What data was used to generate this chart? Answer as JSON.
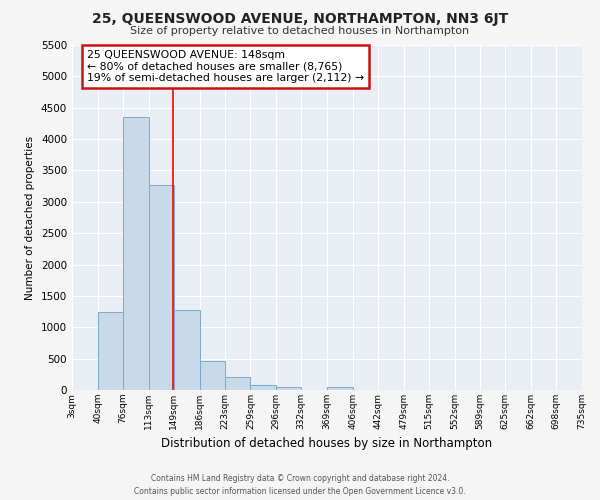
{
  "title": "25, QUEENSWOOD AVENUE, NORTHAMPTON, NN3 6JT",
  "subtitle": "Size of property relative to detached houses in Northampton",
  "xlabel": "Distribution of detached houses by size in Northampton",
  "ylabel": "Number of detached properties",
  "bar_color": "#c8daea",
  "bar_edge_color": "#7aaac8",
  "plot_bg_color": "#e8eef4",
  "fig_bg_color": "#f5f5f5",
  "grid_color": "#ffffff",
  "red_line_x": 148,
  "bin_edges": [
    3,
    40,
    76,
    113,
    149,
    186,
    223,
    259,
    296,
    332,
    369,
    406,
    442,
    479,
    515,
    552,
    589,
    625,
    662,
    698,
    735
  ],
  "bin_counts": [
    0,
    1250,
    4350,
    3270,
    1280,
    470,
    210,
    75,
    55,
    0,
    45,
    0,
    0,
    0,
    0,
    0,
    0,
    0,
    0,
    0
  ],
  "ylim": [
    0,
    5500
  ],
  "yticks": [
    0,
    500,
    1000,
    1500,
    2000,
    2500,
    3000,
    3500,
    4000,
    4500,
    5000,
    5500
  ],
  "annotation_title": "25 QUEENSWOOD AVENUE: 148sqm",
  "annotation_line1": "← 80% of detached houses are smaller (8,765)",
  "annotation_line2": "19% of semi-detached houses are larger (2,112) →",
  "footer_line1": "Contains HM Land Registry data © Crown copyright and database right 2024.",
  "footer_line2": "Contains public sector information licensed under the Open Government Licence v3.0."
}
